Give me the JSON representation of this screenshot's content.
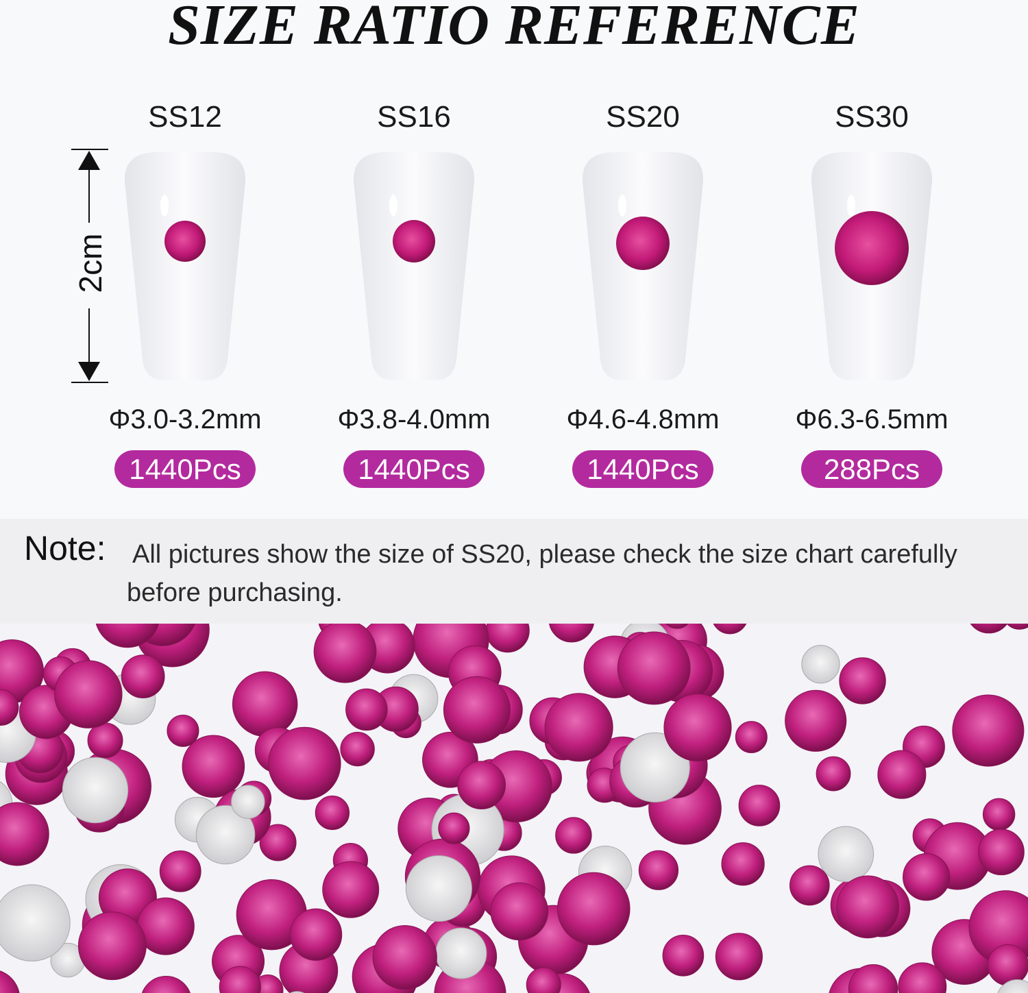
{
  "title": "SIZE RATIO REFERENCE",
  "ruler_label": "2cm",
  "sizes": [
    {
      "name": "SS12",
      "diameter": "Φ3.0-3.2mm",
      "count": "1440Pcs"
    },
    {
      "name": "SS16",
      "diameter": "Φ3.8-4.0mm",
      "count": "1440Pcs"
    },
    {
      "name": "SS20",
      "diameter": "Φ4.6-4.8mm",
      "count": "1440Pcs"
    },
    {
      "name": "SS30",
      "diameter": "Φ6.3-6.5mm",
      "count": "288Pcs"
    }
  ],
  "note": {
    "label": "Note:",
    "text": "All pictures show the size of SS20, please check the size chart carefully before purchasing."
  },
  "colors": {
    "accent": "#b32a9e",
    "gem": "#c8207a"
  }
}
